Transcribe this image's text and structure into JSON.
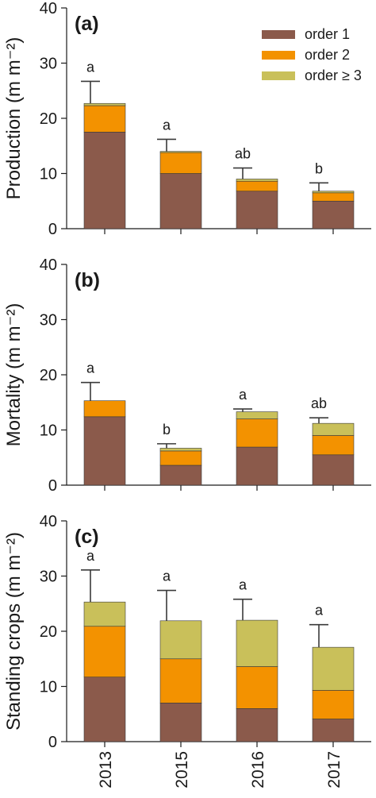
{
  "chart_data": [
    {
      "type": "bar",
      "stacked": true,
      "panel_label": "(a)",
      "ylabel": "Production (m m⁻²)",
      "ylim": [
        0,
        40
      ],
      "yticks": [
        0,
        10,
        20,
        30,
        40
      ],
      "categories": [
        "2013",
        "2015",
        "2016",
        "2017"
      ],
      "series": [
        {
          "name": "order 1",
          "values": [
            17.5,
            10.0,
            6.8,
            5.0
          ]
        },
        {
          "name": "order 2",
          "values": [
            4.8,
            3.8,
            1.8,
            1.5
          ]
        },
        {
          "name": "order ≥ 3",
          "values": [
            0.4,
            0.2,
            0.4,
            0.3
          ]
        }
      ],
      "error_bars": [
        4.0,
        2.2,
        2.0,
        1.5
      ],
      "significance": [
        "a",
        "a",
        "ab",
        "b"
      ],
      "legend": "top-right",
      "grid": false
    },
    {
      "type": "bar",
      "stacked": true,
      "panel_label": "(b)",
      "ylabel": "Mortality (m m⁻²)",
      "ylim": [
        0,
        40
      ],
      "yticks": [
        0,
        10,
        20,
        30,
        40
      ],
      "categories": [
        "2013",
        "2015",
        "2016",
        "2017"
      ],
      "series": [
        {
          "name": "order 1",
          "values": [
            12.4,
            3.6,
            6.9,
            5.5
          ]
        },
        {
          "name": "order 2",
          "values": [
            2.9,
            2.6,
            5.1,
            3.5
          ]
        },
        {
          "name": "order ≥ 3",
          "values": [
            0.0,
            0.5,
            1.3,
            2.2
          ]
        }
      ],
      "error_bars": [
        3.3,
        0.8,
        0.5,
        1.0
      ],
      "significance": [
        "a",
        "b",
        "a",
        "ab"
      ],
      "grid": false
    },
    {
      "type": "bar",
      "stacked": true,
      "panel_label": "(c)",
      "ylabel": "Standing crops (m m⁻²)",
      "ylim": [
        0,
        40
      ],
      "yticks": [
        0,
        10,
        20,
        30,
        40
      ],
      "categories": [
        "2013",
        "2015",
        "2016",
        "2017"
      ],
      "series": [
        {
          "name": "order 1",
          "values": [
            11.7,
            7.0,
            6.0,
            4.1
          ]
        },
        {
          "name": "order 2",
          "values": [
            9.2,
            8.0,
            7.6,
            5.2
          ]
        },
        {
          "name": "order ≥ 3",
          "values": [
            4.4,
            6.9,
            8.4,
            7.8
          ]
        }
      ],
      "error_bars": [
        5.8,
        5.5,
        3.8,
        4.1
      ],
      "significance": [
        "a",
        "a",
        "a",
        "a"
      ],
      "grid": false
    }
  ],
  "colors": {
    "order1": "#8B5A4B",
    "order2": "#F39200",
    "order3": "#C9C05A"
  }
}
